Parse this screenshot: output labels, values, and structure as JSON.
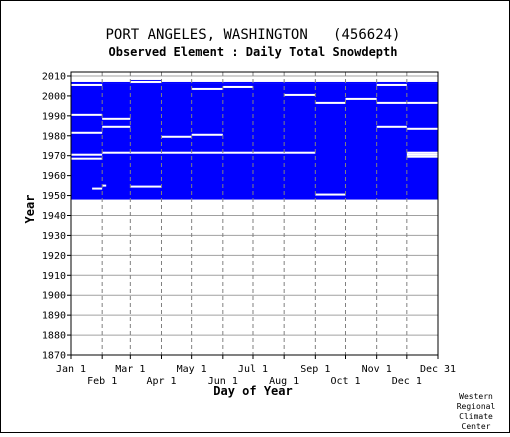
{
  "chart_data": {
    "type": "heatmap",
    "title": "PORT ANGELES, WASHINGTON   (456624)",
    "subtitle": "Observed Element : Daily Total Snowdepth",
    "xlabel": "Day of Year",
    "ylabel": "Year",
    "ylim": [
      1870,
      2012
    ],
    "xlim": [
      1,
      366
    ],
    "y_ticks": [
      1870,
      1880,
      1890,
      1900,
      1910,
      1920,
      1930,
      1940,
      1950,
      1960,
      1970,
      1980,
      1990,
      2000,
      2010
    ],
    "x_ticks_top_row": [
      {
        "label": "Jan 1",
        "day": 1
      },
      {
        "label": "Mar 1",
        "day": 60
      },
      {
        "label": "May 1",
        "day": 121
      },
      {
        "label": "Jul 1",
        "day": 182
      },
      {
        "label": "Sep 1",
        "day": 244
      },
      {
        "label": "Nov 1",
        "day": 305
      },
      {
        "label": "Dec 31",
        "day": 366
      }
    ],
    "x_ticks_bottom_row": [
      {
        "label": "Feb 1",
        "day": 32
      },
      {
        "label": "Apr 1",
        "day": 91
      },
      {
        "label": "Jun 1",
        "day": 152
      },
      {
        "label": "Aug 1",
        "day": 213
      },
      {
        "label": "Oct 1",
        "day": 274
      },
      {
        "label": "Dec 1",
        "day": 335
      }
    ],
    "grid": true,
    "coverage_color": "#0000ff",
    "record_blocks": [
      {
        "start_day": 1,
        "end_day": 366,
        "start_year": 1948,
        "end_year": 2006
      },
      {
        "start_day": 1,
        "end_day": 60,
        "start_year": 2006,
        "end_year": 2007
      },
      {
        "start_day": 60,
        "end_day": 91,
        "start_year": 2006,
        "end_year": 2008
      },
      {
        "start_day": 91,
        "end_day": 305,
        "start_year": 2006,
        "end_year": 2007
      },
      {
        "start_day": 305,
        "end_day": 366,
        "start_year": 2006,
        "end_year": 2007
      },
      {
        "start_day": 1,
        "end_day": 60,
        "start_year": 2005,
        "end_year": 2006
      },
      {
        "start_day": 305,
        "end_day": 366,
        "start_year": 2005,
        "end_year": 2006
      }
    ],
    "missing_gaps": [
      {
        "start_day": 1,
        "end_day": 32,
        "year": 2005.5
      },
      {
        "start_day": 60,
        "end_day": 91,
        "year": 2007
      },
      {
        "start_day": 305,
        "end_day": 335,
        "year": 2005.5
      },
      {
        "start_day": 121,
        "end_day": 152,
        "year": 2003.5
      },
      {
        "start_day": 152,
        "end_day": 182,
        "year": 2004.5
      },
      {
        "start_day": 213,
        "end_day": 244,
        "year": 2000.5
      },
      {
        "start_day": 244,
        "end_day": 274,
        "year": 1996.5
      },
      {
        "start_day": 274,
        "end_day": 305,
        "year": 1998.5
      },
      {
        "start_day": 305,
        "end_day": 366,
        "year": 1996.5
      },
      {
        "start_day": 1,
        "end_day": 32,
        "year": 1990.5
      },
      {
        "start_day": 32,
        "end_day": 60,
        "year": 1988.5
      },
      {
        "start_day": 32,
        "end_day": 60,
        "year": 1984.5
      },
      {
        "start_day": 1,
        "end_day": 32,
        "year": 1981.5
      },
      {
        "start_day": 305,
        "end_day": 335,
        "year": 1984.5
      },
      {
        "start_day": 335,
        "end_day": 366,
        "year": 1983.5
      },
      {
        "start_day": 91,
        "end_day": 121,
        "year": 1979.5
      },
      {
        "start_day": 121,
        "end_day": 152,
        "year": 1980.5
      },
      {
        "start_day": 32,
        "end_day": 60,
        "year": 1971.5
      },
      {
        "start_day": 60,
        "end_day": 182,
        "year": 1971.5
      },
      {
        "start_day": 182,
        "end_day": 244,
        "year": 1971.5
      },
      {
        "start_day": 1,
        "end_day": 32,
        "year": 1970.5
      },
      {
        "start_day": 1,
        "end_day": 32,
        "year": 1968.5
      },
      {
        "start_day": 335,
        "end_day": 366,
        "year": 1969.5
      },
      {
        "start_day": 335,
        "end_day": 366,
        "year": 1970.5
      },
      {
        "start_day": 335,
        "end_day": 366,
        "year": 1971.5
      },
      {
        "start_day": 60,
        "end_day": 91,
        "year": 1954.5
      },
      {
        "start_day": 244,
        "end_day": 274,
        "year": 1950.5
      },
      {
        "start_day": 32,
        "end_day": 36,
        "year": 1955
      },
      {
        "start_day": 22,
        "end_day": 32,
        "year": 1953.5
      }
    ],
    "credit_lines": [
      "Western",
      "Regional",
      "Climate",
      "Center"
    ]
  }
}
